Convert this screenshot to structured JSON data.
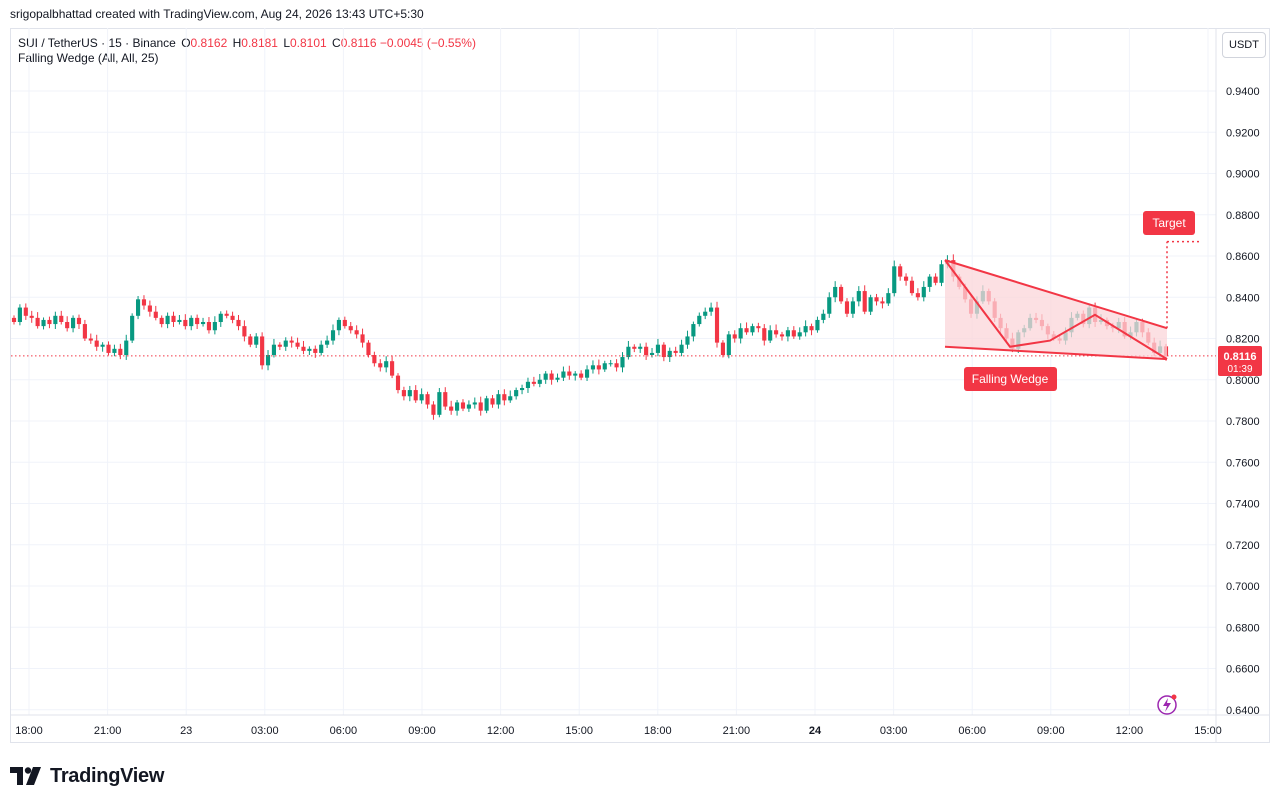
{
  "header": {
    "attribution": "srigopalbhattad created with TradingView.com, Aug 24, 2026 13:43 UTC+5:30"
  },
  "legend": {
    "symbol": "SUI / TetherUS · 15 · Binance",
    "o_label": "O",
    "o_value": "0.8162",
    "h_label": "H",
    "h_value": "0.8181",
    "l_label": "L",
    "l_value": "0.8101",
    "c_label": "C",
    "c_value": "0.8116",
    "change": "−0.0045 (−0.55%)",
    "indicator": "Falling Wedge (All, All, 25)"
  },
  "currency_button": "USDT",
  "brand": {
    "name": "TradingView",
    "logo_icon": "tradingview-logo-icon"
  },
  "colors": {
    "up": "#089981",
    "down": "#f23645",
    "pattern": "#f23645",
    "pattern_fill": "#fbd6da"
  },
  "chart_data": {
    "type": "candlestick",
    "symbol": "SUI / TetherUS",
    "interval": "15",
    "exchange": "Binance",
    "last_price": "0.8116",
    "countdown": "01:39",
    "y_ticks": [
      "0.9400",
      "0.9200",
      "0.9000",
      "0.8800",
      "0.8600",
      "0.8400",
      "0.8200",
      "0.8000",
      "0.7800",
      "0.7600",
      "0.7400",
      "0.7200",
      "0.7000",
      "0.6800",
      "0.6600",
      "0.6400"
    ],
    "ylim": [
      0.634,
      0.95
    ],
    "x_ticks": [
      {
        "label": "18:00",
        "bold": false
      },
      {
        "label": "21:00",
        "bold": false
      },
      {
        "label": "23",
        "bold": false
      },
      {
        "label": "03:00",
        "bold": false
      },
      {
        "label": "06:00",
        "bold": false
      },
      {
        "label": "09:00",
        "bold": false
      },
      {
        "label": "12:00",
        "bold": false
      },
      {
        "label": "15:00",
        "bold": false
      },
      {
        "label": "18:00",
        "bold": false
      },
      {
        "label": "21:00",
        "bold": false
      },
      {
        "label": "24",
        "bold": true
      },
      {
        "label": "03:00",
        "bold": false
      },
      {
        "label": "06:00",
        "bold": false
      },
      {
        "label": "09:00",
        "bold": false
      },
      {
        "label": "12:00",
        "bold": false
      },
      {
        "label": "15:00",
        "bold": false
      }
    ],
    "grid": true,
    "closes": [
      0.828,
      0.835,
      0.831,
      0.83,
      0.826,
      0.829,
      0.827,
      0.831,
      0.828,
      0.825,
      0.83,
      0.827,
      0.82,
      0.819,
      0.816,
      0.817,
      0.813,
      0.815,
      0.812,
      0.819,
      0.831,
      0.839,
      0.836,
      0.833,
      0.83,
      0.827,
      0.831,
      0.828,
      0.829,
      0.826,
      0.83,
      0.827,
      0.828,
      0.824,
      0.828,
      0.832,
      0.831,
      0.829,
      0.826,
      0.821,
      0.817,
      0.821,
      0.807,
      0.812,
      0.817,
      0.816,
      0.819,
      0.818,
      0.816,
      0.814,
      0.815,
      0.813,
      0.817,
      0.819,
      0.824,
      0.829,
      0.826,
      0.824,
      0.822,
      0.818,
      0.812,
      0.808,
      0.806,
      0.809,
      0.802,
      0.795,
      0.792,
      0.795,
      0.79,
      0.793,
      0.788,
      0.783,
      0.794,
      0.787,
      0.785,
      0.789,
      0.786,
      0.788,
      0.789,
      0.785,
      0.791,
      0.788,
      0.793,
      0.79,
      0.792,
      0.795,
      0.796,
      0.799,
      0.798,
      0.8,
      0.803,
      0.8,
      0.801,
      0.804,
      0.802,
      0.803,
      0.801,
      0.805,
      0.807,
      0.805,
      0.808,
      0.808,
      0.806,
      0.811,
      0.816,
      0.815,
      0.816,
      0.812,
      0.813,
      0.817,
      0.811,
      0.814,
      0.813,
      0.817,
      0.821,
      0.827,
      0.831,
      0.833,
      0.835,
      0.818,
      0.812,
      0.822,
      0.82,
      0.825,
      0.823,
      0.826,
      0.825,
      0.819,
      0.824,
      0.822,
      0.821,
      0.824,
      0.821,
      0.823,
      0.826,
      0.824,
      0.829,
      0.832,
      0.84,
      0.845,
      0.838,
      0.832,
      0.838,
      0.843,
      0.833,
      0.84,
      0.838,
      0.837,
      0.842,
      0.855,
      0.85,
      0.848,
      0.842,
      0.84,
      0.845,
      0.85,
      0.847,
      0.856,
      0.858,
      0.85,
      0.845,
      0.839,
      0.832,
      0.838,
      0.843,
      0.838,
      0.83,
      0.825,
      0.82,
      0.815,
      0.823,
      0.825,
      0.83,
      0.829,
      0.826,
      0.822,
      0.82,
      0.819,
      0.823,
      0.83,
      0.832,
      0.827,
      0.835,
      0.828,
      0.829,
      0.826,
      0.825,
      0.828,
      0.821,
      0.823,
      0.828,
      0.823,
      0.818,
      0.813,
      0.8162,
      0.8116
    ],
    "pattern": {
      "name": "Falling Wedge",
      "upper_line": [
        [
          0.858,
          0.825
        ]
      ],
      "lower_line": [
        [
          0.816,
          0.81
        ]
      ],
      "target_label": "Target",
      "target_price": 0.867,
      "label": "Falling Wedge"
    }
  }
}
